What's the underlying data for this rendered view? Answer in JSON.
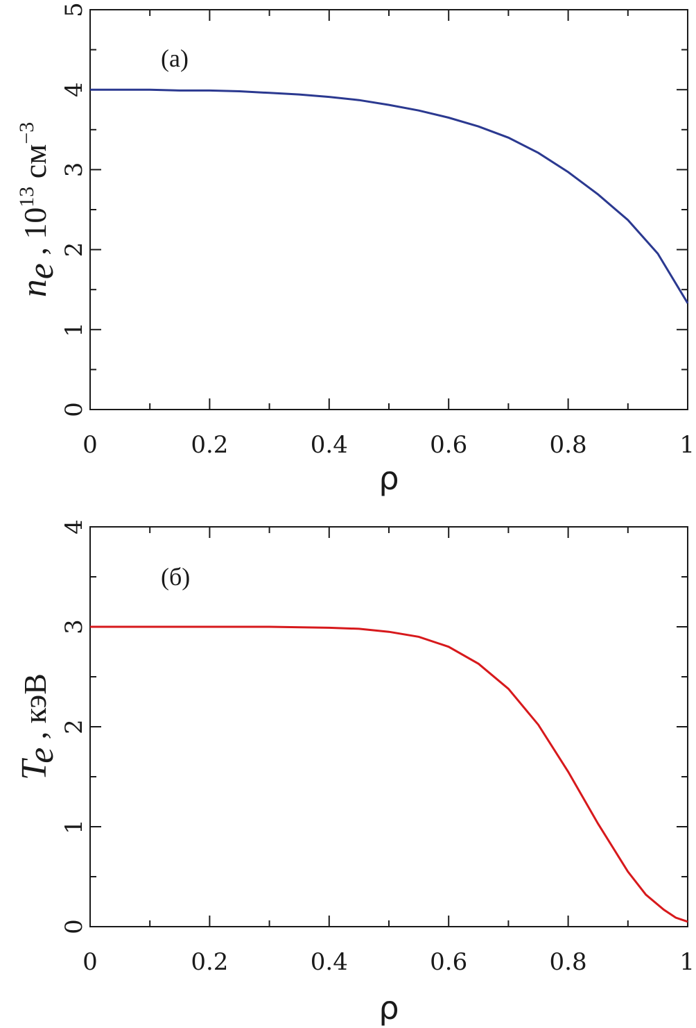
{
  "chart_data": [
    {
      "type": "line",
      "panel_label": "(a)",
      "xlabel": "ρ",
      "ylabel": {
        "symbol": "n",
        "subscript": "e",
        "separator": " , ",
        "prefix": "10",
        "exponent": "13",
        "unit": " см",
        "unit_exponent": "−3"
      },
      "xlim": [
        0,
        1
      ],
      "ylim": [
        0,
        5
      ],
      "x_ticks": [
        "0",
        "0.2",
        "0.4",
        "0.6",
        "0.8",
        "1"
      ],
      "y_ticks": [
        "0",
        "1",
        "2",
        "3",
        "4",
        "5"
      ],
      "grid": false,
      "series": [
        {
          "color": "#2b3990",
          "x": [
            0,
            0.05,
            0.1,
            0.15,
            0.2,
            0.25,
            0.3,
            0.35,
            0.4,
            0.45,
            0.5,
            0.55,
            0.6,
            0.65,
            0.7,
            0.75,
            0.8,
            0.85,
            0.9,
            0.95,
            1.0
          ],
          "y": [
            4.0,
            4.0,
            4.0,
            3.99,
            3.99,
            3.98,
            3.96,
            3.94,
            3.91,
            3.87,
            3.81,
            3.74,
            3.65,
            3.54,
            3.4,
            3.21,
            2.97,
            2.69,
            2.37,
            1.95,
            1.33
          ]
        }
      ]
    },
    {
      "type": "line",
      "panel_label": "(б)",
      "xlabel": "ρ",
      "ylabel": {
        "symbol": "T",
        "subscript": "e",
        "separator": " , ",
        "unit": "кэВ"
      },
      "xlim": [
        0,
        1
      ],
      "ylim": [
        0,
        4
      ],
      "x_ticks": [
        "0",
        "0.2",
        "0.4",
        "0.6",
        "0.8",
        "1"
      ],
      "y_ticks": [
        "0",
        "1",
        "2",
        "3",
        "4"
      ],
      "grid": false,
      "series": [
        {
          "color": "#d7191c",
          "x": [
            0,
            0.1,
            0.2,
            0.3,
            0.4,
            0.45,
            0.5,
            0.55,
            0.6,
            0.65,
            0.7,
            0.75,
            0.8,
            0.85,
            0.9,
            0.93,
            0.96,
            0.98,
            1.0
          ],
          "y": [
            3.0,
            3.0,
            3.0,
            3.0,
            2.99,
            2.98,
            2.95,
            2.9,
            2.8,
            2.63,
            2.38,
            2.02,
            1.55,
            1.03,
            0.55,
            0.32,
            0.17,
            0.09,
            0.05
          ]
        }
      ]
    }
  ]
}
